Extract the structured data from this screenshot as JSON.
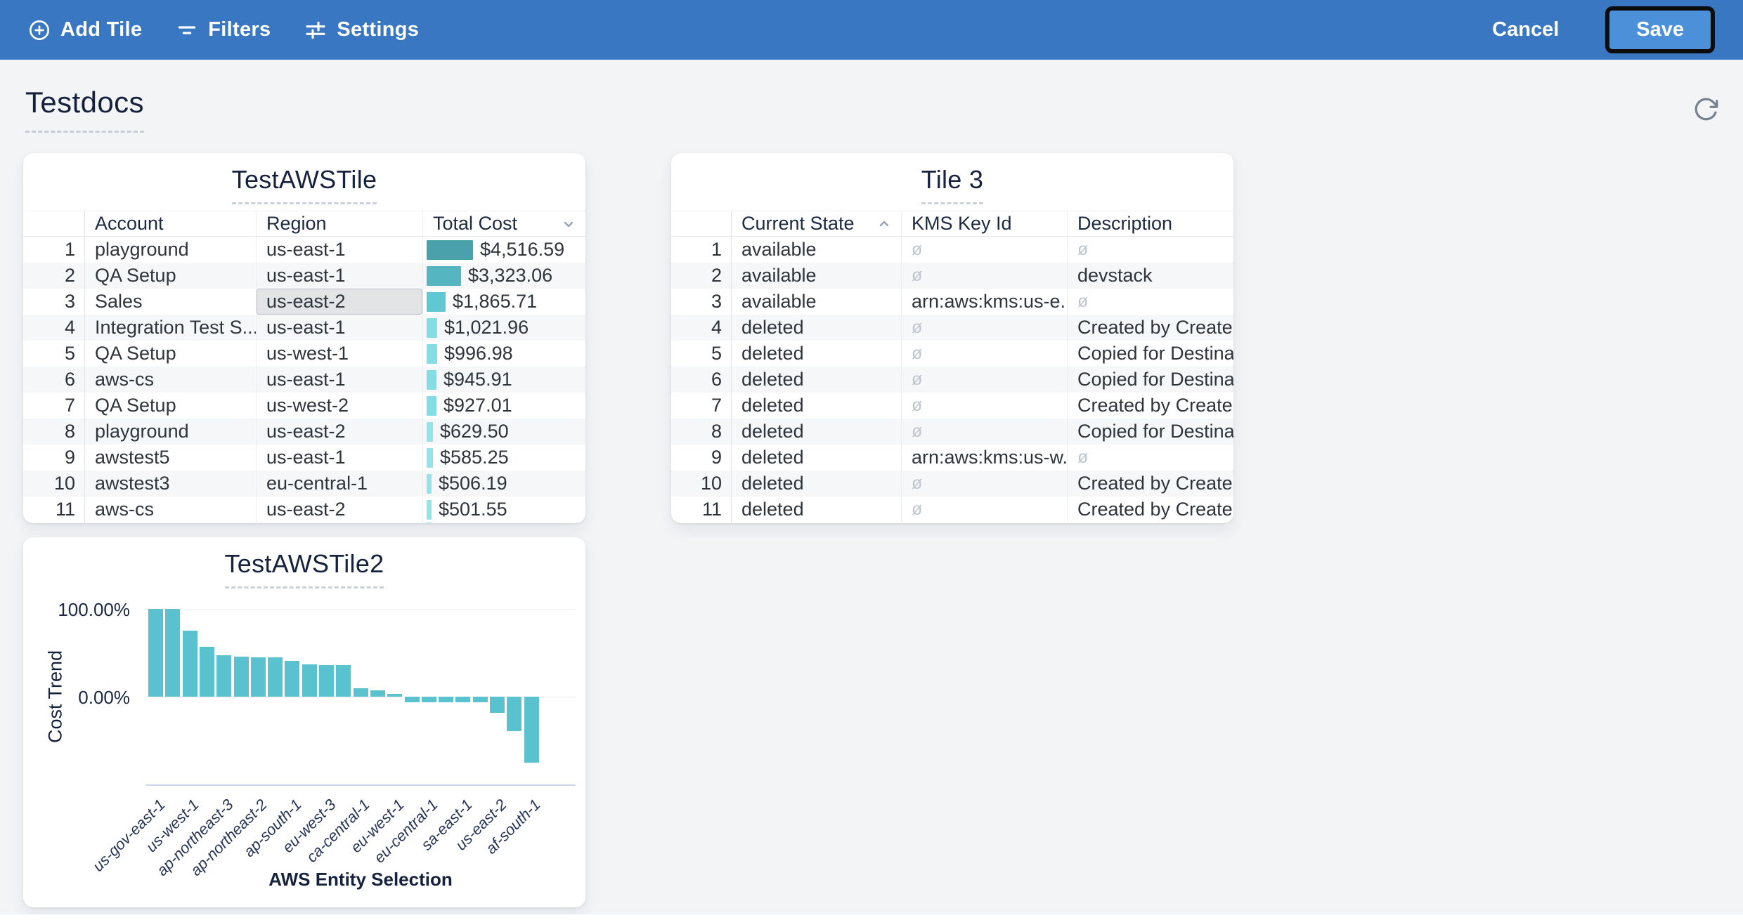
{
  "toolbar": {
    "add_tile": "Add Tile",
    "filters": "Filters",
    "settings": "Settings",
    "cancel": "Cancel",
    "save": "Save",
    "bg_color": "#3a77c2",
    "save_bg_color": "#4b90d9"
  },
  "page": {
    "title": "Testdocs"
  },
  "tiles": {
    "table1": {
      "title": "TestAWSTile",
      "columns": [
        "Account",
        "Region",
        "Total Cost"
      ],
      "sort": {
        "column": "Total Cost",
        "direction": "desc"
      },
      "selected_cell": {
        "row": 3,
        "column": "Region",
        "value": "us-east-2"
      },
      "bar_max_value": 4516.59,
      "rows": [
        {
          "n": 1,
          "account": "playground",
          "region": "us-east-1",
          "cost": "$4,516.59",
          "value": 4516.59
        },
        {
          "n": 2,
          "account": "QA Setup",
          "region": "us-east-1",
          "cost": "$3,323.06",
          "value": 3323.06
        },
        {
          "n": 3,
          "account": "Sales",
          "region": "us-east-2",
          "cost": "$1,865.71",
          "value": 1865.71
        },
        {
          "n": 4,
          "account": "Integration Test S...",
          "region": "us-east-1",
          "cost": "$1,021.96",
          "value": 1021.96
        },
        {
          "n": 5,
          "account": "QA Setup",
          "region": "us-west-1",
          "cost": "$996.98",
          "value": 996.98
        },
        {
          "n": 6,
          "account": "aws-cs",
          "region": "us-east-1",
          "cost": "$945.91",
          "value": 945.91
        },
        {
          "n": 7,
          "account": "QA Setup",
          "region": "us-west-2",
          "cost": "$927.01",
          "value": 927.01
        },
        {
          "n": 8,
          "account": "playground",
          "region": "us-east-2",
          "cost": "$629.50",
          "value": 629.5
        },
        {
          "n": 9,
          "account": "awstest5",
          "region": "us-east-1",
          "cost": "$585.25",
          "value": 585.25
        },
        {
          "n": 10,
          "account": "awstest3",
          "region": "eu-central-1",
          "cost": "$506.19",
          "value": 506.19
        },
        {
          "n": 11,
          "account": "aws-cs",
          "region": "us-east-2",
          "cost": "$501.55",
          "value": 501.55
        }
      ],
      "partial_next_row_visible": true
    },
    "table2": {
      "title": "Tile 3",
      "columns": [
        "Current State",
        "KMS Key Id",
        "Description"
      ],
      "sort": {
        "column": "Current State",
        "direction": "asc"
      },
      "null_symbol": "ø",
      "rows": [
        {
          "n": 1,
          "state": "available",
          "kms": null,
          "desc": null
        },
        {
          "n": 2,
          "state": "available",
          "kms": null,
          "desc": "devstack"
        },
        {
          "n": 3,
          "state": "available",
          "kms": "arn:aws:kms:us-e...",
          "desc": null
        },
        {
          "n": 4,
          "state": "deleted",
          "kms": null,
          "desc": "Created by Create..."
        },
        {
          "n": 5,
          "state": "deleted",
          "kms": null,
          "desc": "Copied for Destina..."
        },
        {
          "n": 6,
          "state": "deleted",
          "kms": null,
          "desc": "Copied for Destina..."
        },
        {
          "n": 7,
          "state": "deleted",
          "kms": null,
          "desc": "Created by Create..."
        },
        {
          "n": 8,
          "state": "deleted",
          "kms": null,
          "desc": "Copied for Destina..."
        },
        {
          "n": 9,
          "state": "deleted",
          "kms": "arn:aws:kms:us-w...",
          "desc": null
        },
        {
          "n": 10,
          "state": "deleted",
          "kms": null,
          "desc": "Created by Create..."
        },
        {
          "n": 11,
          "state": "deleted",
          "kms": null,
          "desc": "Created by Create..."
        }
      ]
    }
  },
  "chart_data": {
    "type": "bar",
    "title": "TestAWSTile2",
    "xlabel": "AWS Entity Selection",
    "ylabel": "Cost Trend",
    "y_tick_labels": [
      "100.00%",
      "0.00%"
    ],
    "ylim": [
      -100,
      100
    ],
    "grid": true,
    "bar_color": "#5ac2cf",
    "label_interval": 2,
    "categories": [
      "us-gov-east-1",
      "us-west-1",
      "ap-northeast-3",
      "ap-northeast-2",
      "ap-south-1",
      "eu-west-3",
      "ca-central-1",
      "eu-west-1",
      "eu-central-1",
      "sa-east-1",
      "us-east-2",
      "af-south-1"
    ],
    "values": [
      100,
      100,
      75,
      57,
      47,
      46,
      45,
      45,
      41,
      37,
      36,
      36,
      10,
      7,
      3,
      -6,
      -6,
      -6,
      -6,
      -6,
      -18,
      -39,
      -75
    ],
    "note": "23 bars shown; x-axis category labels rendered for every 2nd bar"
  }
}
